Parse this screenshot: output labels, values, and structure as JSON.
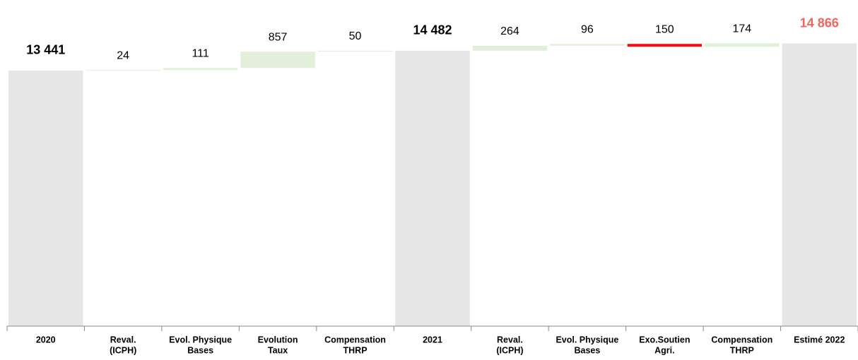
{
  "chart_data": {
    "type": "waterfall",
    "categories": [
      [
        "2020"
      ],
      [
        "Reval.",
        "(ICPH)"
      ],
      [
        "Evol. Physique",
        "Bases"
      ],
      [
        "Evolution",
        "Taux"
      ],
      [
        "Compensation",
        "THRP"
      ],
      [
        "2021"
      ],
      [
        "Reval.",
        "(ICPH)"
      ],
      [
        "Evol. Physique",
        "Bases"
      ],
      [
        "Exo.Soutien",
        "Agri."
      ],
      [
        "Compensation",
        "THRP"
      ],
      [
        "Estimé 2022"
      ]
    ],
    "values": [
      13441,
      24,
      111,
      857,
      50,
      14482,
      264,
      96,
      -150,
      174,
      14866
    ],
    "value_labels": [
      "13 441",
      "24",
      "111",
      "857",
      "50",
      "14 482",
      "264",
      "96",
      "150",
      "174",
      "14 866"
    ],
    "totals": [
      0,
      5,
      10
    ],
    "total_color": "#e6e6e6",
    "increase_color": "#e2efda",
    "decrease_color": "#ee1111",
    "value_label_colors": [
      "#000000",
      "#000000",
      "#000000",
      "#000000",
      "#000000",
      "#000000",
      "#000000",
      "#000000",
      "#000000",
      "#000000",
      "#f4645f"
    ],
    "ylim": [
      0,
      17150
    ]
  }
}
